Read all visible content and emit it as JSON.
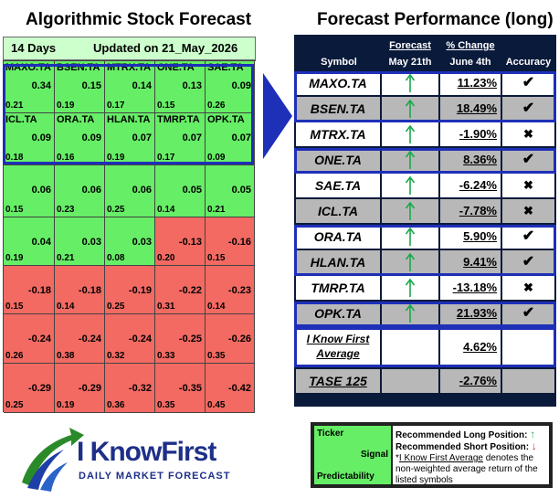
{
  "left": {
    "title": "Algorithmic Stock Forecast",
    "horizon": "14 Days",
    "updated": "Updated on 21_May_2026",
    "cells": [
      [
        {
          "symbol": "MAXO.TA",
          "signal": "0.34",
          "pred": "0.21"
        },
        {
          "symbol": "BSEN.TA",
          "signal": "0.15",
          "pred": "0.19"
        },
        {
          "symbol": "MTRX.TA",
          "signal": "0.14",
          "pred": "0.17"
        },
        {
          "symbol": "ONE.TA",
          "signal": "0.13",
          "pred": "0.15"
        },
        {
          "symbol": "SAE.TA",
          "signal": "0.09",
          "pred": "0.26"
        }
      ],
      [
        {
          "symbol": "ICL.TA",
          "signal": "0.09",
          "pred": "0.18"
        },
        {
          "symbol": "ORA.TA",
          "signal": "0.09",
          "pred": "0.16"
        },
        {
          "symbol": "HLAN.TA",
          "signal": "0.07",
          "pred": "0.19"
        },
        {
          "symbol": "TMRP.TA",
          "signal": "0.07",
          "pred": "0.17"
        },
        {
          "symbol": "OPK.TA",
          "signal": "0.07",
          "pred": "0.09"
        }
      ],
      [
        {
          "symbol": "",
          "signal": "0.06",
          "pred": "0.15"
        },
        {
          "symbol": "",
          "signal": "0.06",
          "pred": "0.23"
        },
        {
          "symbol": "",
          "signal": "0.06",
          "pred": "0.25"
        },
        {
          "symbol": "",
          "signal": "0.05",
          "pred": "0.14"
        },
        {
          "symbol": "",
          "signal": "0.05",
          "pred": "0.21"
        }
      ],
      [
        {
          "symbol": "",
          "signal": "0.04",
          "pred": "0.19"
        },
        {
          "symbol": "",
          "signal": "0.03",
          "pred": "0.21"
        },
        {
          "symbol": "",
          "signal": "0.03",
          "pred": "0.08"
        },
        {
          "symbol": "",
          "signal": "-0.13",
          "pred": "0.20"
        },
        {
          "symbol": "",
          "signal": "-0.16",
          "pred": "0.15"
        }
      ],
      [
        {
          "symbol": "",
          "signal": "-0.18",
          "pred": "0.15"
        },
        {
          "symbol": "",
          "signal": "-0.18",
          "pred": "0.14"
        },
        {
          "symbol": "",
          "signal": "-0.19",
          "pred": "0.25"
        },
        {
          "symbol": "",
          "signal": "-0.22",
          "pred": "0.31"
        },
        {
          "symbol": "",
          "signal": "-0.23",
          "pred": "0.14"
        }
      ],
      [
        {
          "symbol": "",
          "signal": "-0.24",
          "pred": "0.26"
        },
        {
          "symbol": "",
          "signal": "-0.24",
          "pred": "0.38"
        },
        {
          "symbol": "",
          "signal": "-0.24",
          "pred": "0.32"
        },
        {
          "symbol": "",
          "signal": "-0.25",
          "pred": "0.33"
        },
        {
          "symbol": "",
          "signal": "-0.26",
          "pred": "0.35"
        }
      ],
      [
        {
          "symbol": "",
          "signal": "-0.29",
          "pred": "0.25"
        },
        {
          "symbol": "",
          "signal": "-0.29",
          "pred": "0.19"
        },
        {
          "symbol": "",
          "signal": "-0.32",
          "pred": "0.36"
        },
        {
          "symbol": "",
          "signal": "-0.35",
          "pred": "0.35"
        },
        {
          "symbol": "",
          "signal": "-0.42",
          "pred": "0.45"
        }
      ]
    ]
  },
  "right": {
    "title": "Forecast Performance (long)",
    "headers": {
      "symbol": "Symbol",
      "forecast": "Forecast",
      "forecast_date": "May 21th",
      "change": "% Change",
      "change_date": "June 4th",
      "accuracy": "Accuracy"
    }
  },
  "chart_data": {
    "type": "table",
    "columns": [
      "Symbol",
      "Forecast May 21th",
      "% Change June 4th",
      "Accuracy"
    ],
    "rows": [
      {
        "symbol": "MAXO.TA",
        "forecast": "up",
        "change": "11.23%",
        "accurate": true
      },
      {
        "symbol": "BSEN.TA",
        "forecast": "up",
        "change": "18.49%",
        "accurate": true
      },
      {
        "symbol": "MTRX.TA",
        "forecast": "up",
        "change": "-1.90%",
        "accurate": false
      },
      {
        "symbol": "ONE.TA",
        "forecast": "up",
        "change": "8.36%",
        "accurate": true
      },
      {
        "symbol": "SAE.TA",
        "forecast": "up",
        "change": "-6.24%",
        "accurate": false
      },
      {
        "symbol": "ICL.TA",
        "forecast": "up",
        "change": "-7.78%",
        "accurate": false
      },
      {
        "symbol": "ORA.TA",
        "forecast": "up",
        "change": "5.90%",
        "accurate": true
      },
      {
        "symbol": "HLAN.TA",
        "forecast": "up",
        "change": "9.41%",
        "accurate": true
      },
      {
        "symbol": "TMRP.TA",
        "forecast": "up",
        "change": "-13.18%",
        "accurate": false
      },
      {
        "symbol": "OPK.TA",
        "forecast": "up",
        "change": "21.93%",
        "accurate": true
      }
    ],
    "average": {
      "label_line1": "I Know First",
      "label_line2": "Average",
      "change": "4.62%"
    },
    "benchmark": {
      "label": "TASE 125",
      "change": "-2.76%"
    },
    "colors": {
      "arrow": "#1aa84a",
      "highlight": "#1e2fb8",
      "positive": "#66ee66",
      "negative": "#f26a62",
      "header": "#0a1a3a"
    }
  },
  "legend": {
    "ticker": "Ticker",
    "signal": "Signal",
    "predictability": "Predictability",
    "long": "Recommended Long Position:",
    "short": "Recommended Short Position:",
    "note_prefix": "*",
    "note_link": "I Know First Average",
    "note_rest": " denotes the non-weighted average return of the listed symbols"
  },
  "logo": {
    "brand": "I KnowFirst",
    "tagline": "DAILY MARKET FORECAST"
  }
}
